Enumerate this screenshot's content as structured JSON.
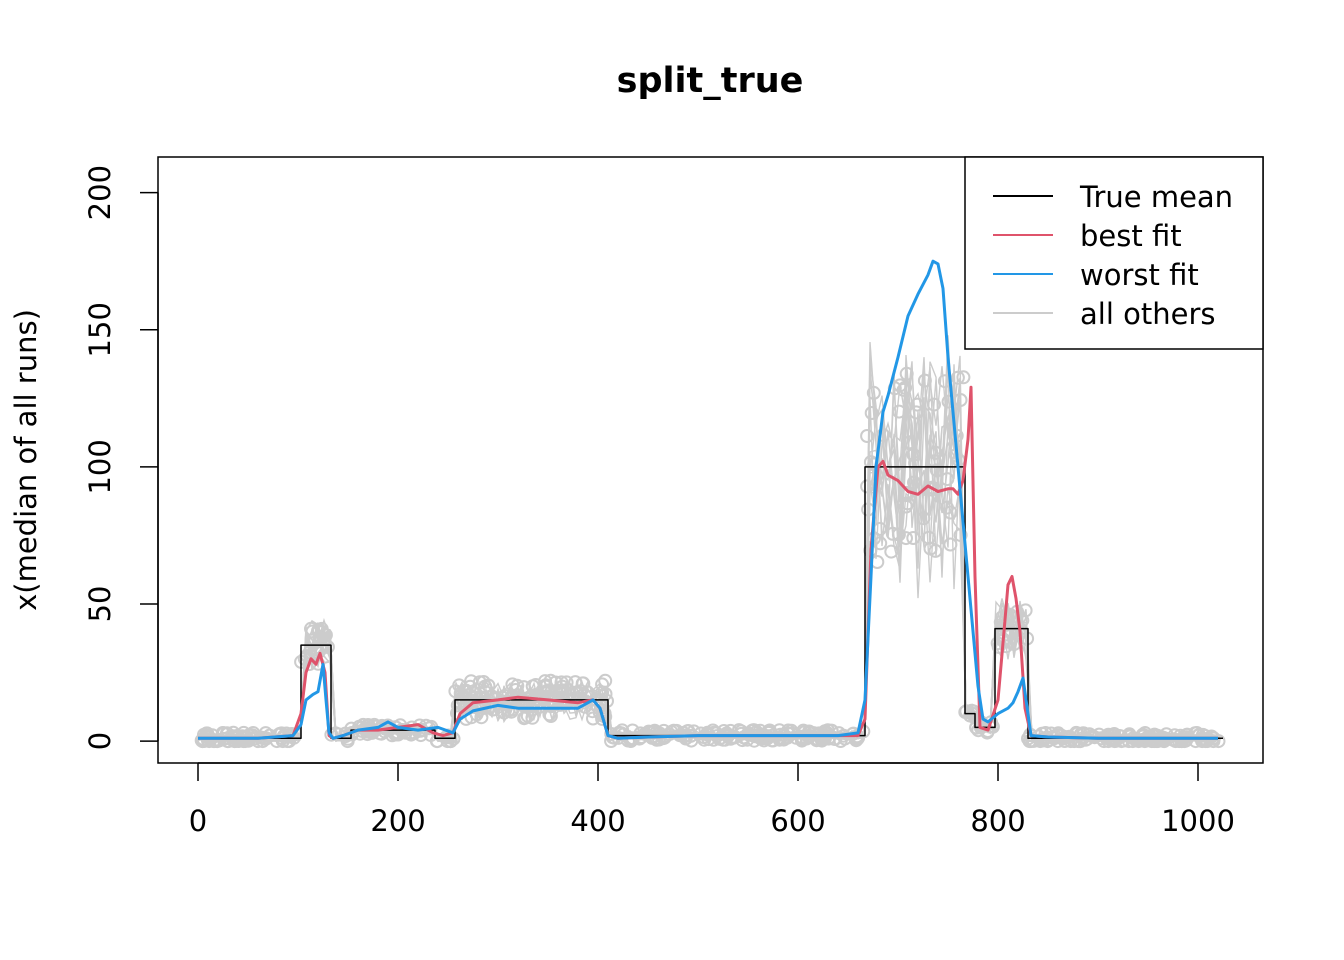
{
  "chart_data": {
    "type": "line",
    "title": "split_true",
    "xlabel": "",
    "ylabel": "x(median of all runs)",
    "xlim": [
      -40,
      1065
    ],
    "ylim": [
      -8,
      213
    ],
    "x_ticks": [
      0,
      200,
      400,
      600,
      800,
      1000
    ],
    "x_tick_labels": [
      "0",
      "200",
      "400",
      "600",
      "800",
      "1000"
    ],
    "y_ticks": [
      0,
      50,
      100,
      150,
      200
    ],
    "y_tick_labels": [
      "0",
      "50",
      "100",
      "150",
      "200"
    ],
    "legend": {
      "position": "top-right",
      "entries": [
        {
          "label": "True mean",
          "color": "#000000"
        },
        {
          "label": "best fit",
          "color": "#df536b"
        },
        {
          "label": "worst fit",
          "color": "#2297e6"
        },
        {
          "label": "all others",
          "color": "#cccccc"
        }
      ]
    },
    "series": [
      {
        "name": "True mean",
        "color": "#000000",
        "step": true,
        "x": [
          0,
          103,
          103,
          133,
          133,
          153,
          153,
          237,
          237,
          257,
          257,
          410,
          410,
          667,
          667,
          767,
          767,
          777,
          777,
          797,
          797,
          830,
          830,
          1025
        ],
        "y": [
          1,
          1,
          35,
          35,
          1,
          1,
          4,
          4,
          1,
          1,
          15,
          15,
          2,
          2,
          100,
          100,
          10,
          10,
          5,
          5,
          41,
          41,
          1,
          1
        ]
      },
      {
        "name": "best fit",
        "color": "#df536b",
        "x": [
          0,
          60,
          95,
          103,
          108,
          113,
          118,
          122,
          127,
          131,
          135,
          145,
          160,
          180,
          200,
          220,
          235,
          245,
          255,
          262,
          275,
          300,
          320,
          350,
          380,
          395,
          402,
          410,
          420,
          450,
          500,
          550,
          600,
          640,
          660,
          667,
          673,
          680,
          685,
          690,
          700,
          710,
          720,
          730,
          740,
          750,
          755,
          760,
          765,
          770,
          773,
          777,
          782,
          790,
          800,
          806,
          810,
          814,
          818,
          822,
          827,
          833,
          850,
          900,
          1000,
          1020
        ],
        "y": [
          1,
          1,
          2,
          10,
          25,
          30,
          28,
          32,
          25,
          2,
          1,
          2,
          4,
          4,
          5,
          6,
          3,
          2,
          3,
          10,
          14,
          15,
          16,
          15,
          14,
          15,
          12,
          2,
          1,
          1.5,
          2,
          2,
          2,
          2,
          2,
          8,
          70,
          100,
          102,
          97,
          95,
          91,
          90,
          93,
          91,
          92,
          92,
          90,
          95,
          110,
          129,
          60,
          5,
          4,
          15,
          40,
          57,
          60,
          52,
          40,
          12,
          2,
          1.5,
          1,
          1,
          1
        ]
      },
      {
        "name": "worst fit",
        "color": "#2297e6",
        "x": [
          0,
          60,
          95,
          103,
          108,
          115,
          120,
          125,
          128,
          131,
          135,
          145,
          160,
          180,
          190,
          200,
          220,
          240,
          255,
          262,
          275,
          300,
          320,
          350,
          380,
          395,
          402,
          410,
          420,
          450,
          500,
          550,
          600,
          640,
          660,
          667,
          673,
          678,
          685,
          690,
          700,
          710,
          720,
          730,
          735,
          740,
          745,
          750,
          755,
          760,
          765,
          770,
          775,
          780,
          785,
          790,
          800,
          810,
          815,
          820,
          825,
          833,
          850,
          900,
          1000,
          1020
        ],
        "y": [
          1,
          1,
          2,
          6,
          15,
          17,
          18,
          28,
          15,
          3,
          1,
          2,
          4,
          5,
          7,
          5,
          4,
          5,
          3,
          8,
          11,
          13,
          12,
          12,
          12,
          15,
          12,
          2,
          1,
          1.5,
          2,
          2,
          2,
          2,
          3,
          15,
          60,
          100,
          120,
          126,
          140,
          155,
          163,
          170,
          175,
          174,
          165,
          140,
          120,
          100,
          80,
          60,
          40,
          20,
          8,
          7,
          10,
          12,
          14,
          18,
          23,
          2,
          1.5,
          1,
          1,
          1
        ]
      }
    ]
  }
}
